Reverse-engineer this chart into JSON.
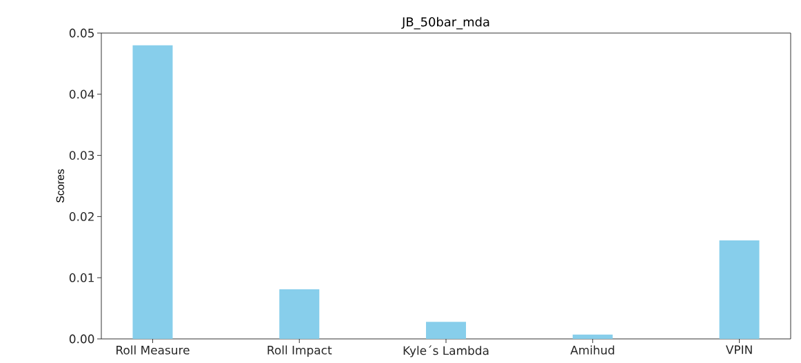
{
  "chart_data": {
    "type": "bar",
    "title": "JB_50bar_mda",
    "ylabel": "Scores",
    "categories": [
      "Roll Measure",
      "Roll Impact",
      "Kyle´s Lambda",
      "Amihud",
      "VPIN"
    ],
    "values": [
      0.048,
      0.0081,
      0.0028,
      0.0007,
      0.0161
    ],
    "color": "#87ceeb",
    "ylim": [
      0,
      0.05
    ],
    "yticks": [
      {
        "value": 0,
        "label": "0.00"
      },
      0.01,
      0.02,
      0.03,
      0.04,
      0.05
    ]
  }
}
